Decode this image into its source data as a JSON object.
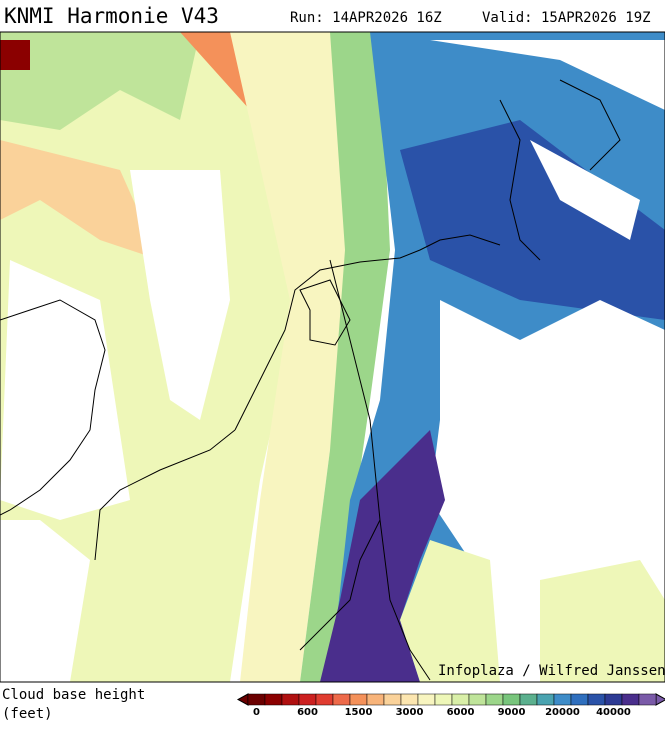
{
  "header": {
    "title": "KNMI Harmonie V43",
    "run": "Run: 14APR2026 16Z",
    "valid": "Valid: 15APR2026 19Z"
  },
  "credit": "Infoplaza / Wilfred Janssen",
  "legend": {
    "title_lines": [
      "Cloud base height",
      "(feet)"
    ],
    "colors": [
      "#6b0000",
      "#8b0000",
      "#b01010",
      "#cc2020",
      "#e03c30",
      "#ee6a4a",
      "#f4915a",
      "#f8b47a",
      "#fad29a",
      "#fce6b0",
      "#f8f5c0",
      "#eef7b8",
      "#d9efa8",
      "#bfe49a",
      "#9cd68a",
      "#78c57c",
      "#5bb08e",
      "#4aa3b0",
      "#3e8cc8",
      "#2f6fbe",
      "#2a52a8",
      "#2d3a94",
      "#4a2e8c",
      "#7a5aa8"
    ],
    "labels": [
      "0",
      "600",
      "1500",
      "3000",
      "6000",
      "9000",
      "20000",
      "40000"
    ]
  }
}
